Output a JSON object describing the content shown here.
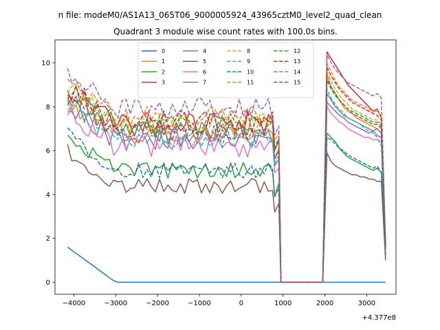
{
  "figure": {
    "suptitle": "n file: modeM0/AS1A13_065T06_9000005924_43965cztM0_level2_quad_clean",
    "title": "Quadrant 3 module wise count rates with 100.0s bins."
  },
  "chart_data": {
    "type": "line",
    "x_offset_label": "+4.377e8",
    "xticks": [
      -4000,
      -3000,
      -2000,
      -1000,
      0,
      1000,
      2000,
      3000
    ],
    "xtick_labels": [
      "−4000",
      "−3000",
      "−2000",
      "−1000",
      "0",
      "1000",
      "2000",
      "3000"
    ],
    "yticks": [
      0,
      2,
      4,
      6,
      8,
      10
    ],
    "ytick_labels": [
      "0",
      "2",
      "4",
      "6",
      "8",
      "10"
    ],
    "xlim": [
      -4450,
      3700
    ],
    "ylim": [
      -0.55,
      11.05
    ],
    "grid": false,
    "legend_position": "upper center",
    "legend_columns": 4,
    "x_segments": [
      {
        "start": -4150,
        "end": 750,
        "step": 100
      },
      {
        "start": 800,
        "end": 900,
        "step": 100
      },
      {
        "start": 950,
        "end": 1950,
        "step": 100
      },
      {
        "start": 2050,
        "end": 3450,
        "step": 100
      }
    ],
    "series": [
      {
        "name": "0",
        "color": "#1f77b4",
        "style": "solid",
        "base": 0,
        "noise": 0,
        "dip": 0,
        "after": [
          0,
          0,
          0,
          0,
          0,
          0,
          0,
          0,
          0,
          0,
          0,
          0,
          0,
          0,
          0
        ]
      },
      {
        "name": "1",
        "color": "#ff7f0e",
        "style": "solid",
        "base": 6.8,
        "noise": 0.55,
        "dip": 6.2,
        "after": [
          9.5,
          8.9,
          8.6,
          8.3,
          8.0,
          7.8,
          7.7,
          7.5,
          7.4,
          7.3,
          7.2,
          7.1,
          7.0,
          6.8,
          1.6
        ]
      },
      {
        "name": "2",
        "color": "#2ca02c",
        "style": "solid",
        "base": 5.1,
        "noise": 0.35,
        "dip": 4.5,
        "after": [
          6.8,
          6.6,
          6.4,
          6.1,
          5.9,
          5.7,
          5.6,
          5.5,
          5.4,
          5.3,
          5.2,
          5.1,
          5.2,
          5.0,
          1.3
        ]
      },
      {
        "name": "3",
        "color": "#d62728",
        "style": "solid",
        "base": 7.2,
        "noise": 0.55,
        "dip": 8.4,
        "after": [
          10.5,
          10.2,
          9.9,
          9.6,
          9.3,
          9.0,
          8.8,
          8.6,
          8.4,
          8.2,
          8.0,
          7.8,
          7.9,
          7.5,
          1.8
        ]
      },
      {
        "name": "4",
        "color": "#9467bd",
        "style": "solid",
        "base": 6.5,
        "noise": 0.5,
        "dip": 5.6,
        "after": [
          8.2,
          8.0,
          7.8,
          7.6,
          7.5,
          7.3,
          7.2,
          7.1,
          7.0,
          6.9,
          6.8,
          6.9,
          6.7,
          6.6,
          1.5
        ]
      },
      {
        "name": "5",
        "color": "#8c564b",
        "style": "solid",
        "base": 4.4,
        "noise": 0.35,
        "dip": 3.6,
        "after": [
          5.9,
          5.5,
          5.3,
          5.2,
          5.1,
          5.0,
          4.9,
          4.9,
          4.8,
          4.8,
          4.7,
          4.7,
          4.6,
          4.6,
          1.0
        ]
      },
      {
        "name": "6",
        "color": "#e377c2",
        "style": "solid",
        "base": 6.2,
        "noise": 0.5,
        "dip": 5.2,
        "after": [
          8.0,
          7.7,
          7.5,
          7.3,
          7.2,
          7.0,
          6.9,
          6.8,
          6.7,
          6.6,
          6.6,
          6.5,
          6.5,
          6.4,
          1.4
        ]
      },
      {
        "name": "7",
        "color": "#7f7f7f",
        "style": "solid",
        "base": 6.8,
        "noise": 0.5,
        "dip": 6.0,
        "after": [
          8.6,
          8.3,
          8.0,
          7.8,
          7.6,
          7.5,
          7.4,
          7.3,
          7.2,
          7.1,
          7.0,
          6.9,
          7.0,
          6.8,
          1.5
        ]
      },
      {
        "name": "8",
        "color": "#bcbd22",
        "style": "dashed",
        "base": 7.2,
        "noise": 0.5,
        "dip": 6.4,
        "after": [
          9.6,
          9.2,
          8.8,
          8.5,
          8.3,
          8.1,
          7.9,
          7.8,
          7.7,
          7.6,
          7.5,
          7.4,
          7.4,
          7.2,
          1.7
        ]
      },
      {
        "name": "9",
        "color": "#17becf",
        "style": "dashed",
        "base": 6.6,
        "noise": 0.5,
        "dip": 5.8,
        "after": [
          8.8,
          8.4,
          8.1,
          7.9,
          7.7,
          7.5,
          7.4,
          7.3,
          7.2,
          7.0,
          6.9,
          6.8,
          6.6,
          6.2,
          1.5
        ]
      },
      {
        "name": "10",
        "color": "#1f77b4",
        "style": "dashed",
        "base": 5.1,
        "noise": 0.35,
        "dip": 4.3,
        "after": [
          6.6,
          6.5,
          6.3,
          6.1,
          6.0,
          5.8,
          5.7,
          5.6,
          5.5,
          5.4,
          5.3,
          5.2,
          5.3,
          5.0,
          1.2
        ]
      },
      {
        "name": "11",
        "color": "#ff7f0e",
        "style": "dashed",
        "base": 7.6,
        "noise": 0.45,
        "dip": 7.0,
        "after": [
          10.0,
          9.6,
          9.2,
          8.9,
          8.7,
          8.5,
          8.3,
          8.2,
          8.1,
          8.0,
          7.9,
          7.8,
          7.8,
          7.6,
          1.8
        ]
      },
      {
        "name": "12",
        "color": "#2ca02c",
        "style": "dashed",
        "base": 7.2,
        "noise": 0.5,
        "dip": 6.6,
        "after": [
          9.2,
          8.8,
          8.5,
          8.3,
          8.1,
          7.9,
          7.8,
          7.7,
          7.6,
          7.5,
          7.4,
          7.3,
          7.3,
          7.1,
          1.6
        ]
      },
      {
        "name": "13",
        "color": "#d62728",
        "style": "dashed",
        "base": 7.3,
        "noise": 0.55,
        "dip": 6.8,
        "after": [
          9.8,
          9.4,
          9.1,
          8.8,
          8.6,
          8.4,
          8.2,
          8.1,
          8.0,
          7.9,
          7.8,
          7.7,
          7.6,
          7.4,
          1.7
        ]
      },
      {
        "name": "14",
        "color": "#9467bd",
        "style": "dashed",
        "base": 7.9,
        "noise": 0.5,
        "dip": 7.2,
        "after": [
          10.4,
          10.0,
          9.7,
          9.5,
          9.3,
          9.1,
          9.0,
          8.9,
          8.8,
          8.7,
          8.6,
          8.5,
          8.6,
          8.4,
          1.9
        ]
      },
      {
        "name": "15",
        "color": "#8c564b",
        "style": "dashed",
        "base": 6.9,
        "noise": 0.5,
        "dip": 6.0,
        "after": [
          9.3,
          8.9,
          8.6,
          8.3,
          8.1,
          7.9,
          7.7,
          7.6,
          7.5,
          7.4,
          7.3,
          7.2,
          7.2,
          7.0,
          1.6
        ]
      }
    ]
  }
}
